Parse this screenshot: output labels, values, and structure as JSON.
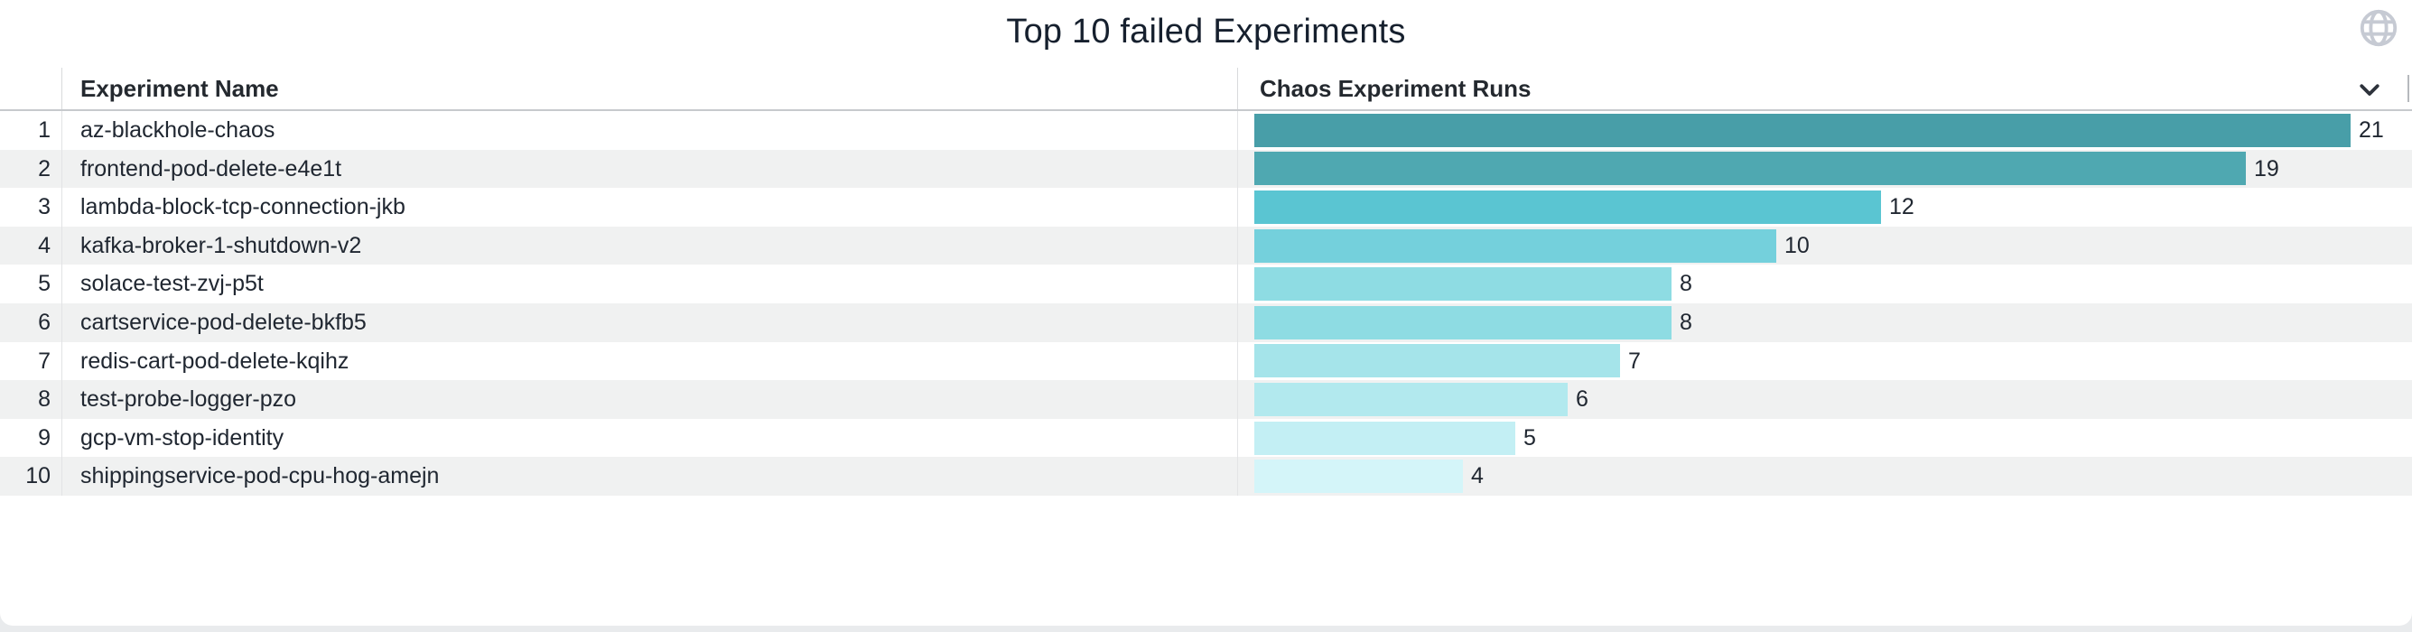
{
  "panel": {
    "title": "Top 10 failed Experiments",
    "icons": {
      "top_right": "globe-icon",
      "header_sort": "chevron-down-icon"
    }
  },
  "table": {
    "columns": [
      "Experiment Name",
      "Chaos Experiment Runs"
    ],
    "rows": [
      {
        "rank": "1",
        "name": "az-blackhole-chaos",
        "runs": 21,
        "bar_color": "#489ea8"
      },
      {
        "rank": "2",
        "name": "frontend-pod-delete-e4e1t",
        "runs": 19,
        "bar_color": "#4fa8b1"
      },
      {
        "rank": "3",
        "name": "lambda-block-tcp-connection-jkb",
        "runs": 12,
        "bar_color": "#5ac5d2"
      },
      {
        "rank": "4",
        "name": "kafka-broker-1-shutdown-v2",
        "runs": 10,
        "bar_color": "#74d0dc"
      },
      {
        "rank": "5",
        "name": "solace-test-zvj-p5t",
        "runs": 8,
        "bar_color": "#8edce3"
      },
      {
        "rank": "6",
        "name": "cartservice-pod-delete-bkfb5",
        "runs": 8,
        "bar_color": "#8edce3"
      },
      {
        "rank": "7",
        "name": "redis-cart-pod-delete-kqihz",
        "runs": 7,
        "bar_color": "#a5e4ea"
      },
      {
        "rank": "8",
        "name": "test-probe-logger-pzo",
        "runs": 6,
        "bar_color": "#b2e9ee"
      },
      {
        "rank": "9",
        "name": "gcp-vm-stop-identity",
        "runs": 5,
        "bar_color": "#c3eff4"
      },
      {
        "rank": "10",
        "name": "shippingservice-pod-cpu-hog-amejn",
        "runs": 4,
        "bar_color": "#d4f5f9"
      }
    ]
  },
  "colors": {
    "accent_dark": "#489ea8",
    "accent_light": "#d4f5f9",
    "row_stripe": "#f0f1f1",
    "header_border": "#c7cacd",
    "title_text": "#16202e",
    "body_text": "#202731",
    "globe_icon": "#c6cad3",
    "page_background": "#e9ebed"
  },
  "chart_data": {
    "type": "bar",
    "orientation": "horizontal",
    "title": "Top 10 failed Experiments",
    "series_label": "Chaos Experiment Runs",
    "categories": [
      "az-blackhole-chaos",
      "frontend-pod-delete-e4e1t",
      "lambda-block-tcp-connection-jkb",
      "kafka-broker-1-shutdown-v2",
      "solace-test-zvj-p5t",
      "cartservice-pod-delete-bkfb5",
      "redis-cart-pod-delete-kqihz",
      "test-probe-logger-pzo",
      "gcp-vm-stop-identity",
      "shippingservice-pod-cpu-hog-amejn"
    ],
    "values": [
      21,
      19,
      12,
      10,
      8,
      8,
      7,
      6,
      5,
      4
    ],
    "xlim": [
      0,
      21
    ],
    "data_labels": true,
    "grid": false,
    "legend": false
  }
}
